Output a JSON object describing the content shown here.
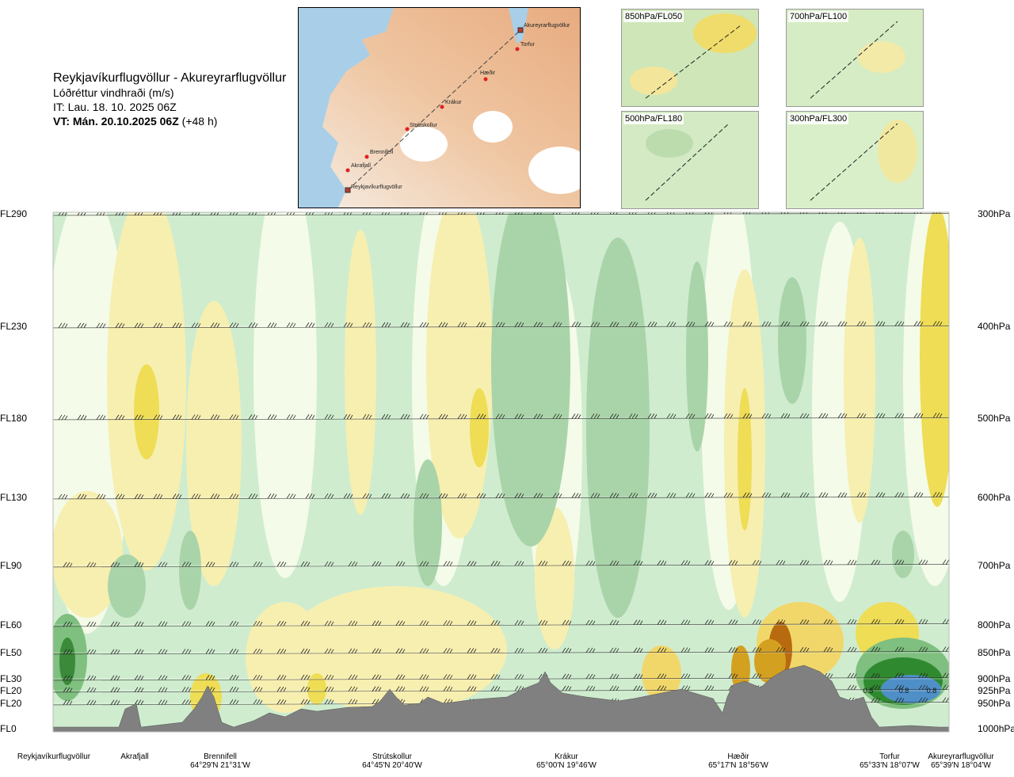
{
  "header": {
    "route": "Reykjavíkurflugvöllur - Akureyrarflugvöllur",
    "quantity": "Lóðréttur vindhraði (m/s)",
    "issue_time": "IT: Lau. 18. 10. 2025 06Z",
    "valid_time_bold": "VT: Mán. 20.10.2025 06Z",
    "valid_time_offset": "(+48 h)"
  },
  "map": {
    "places": [
      "Akureyrarflugvöllur",
      "Torfur",
      "Hæðir",
      "Krákur",
      "Strútskollur",
      "Brennifell",
      "Akrafjall",
      "Reykjavíkurflugvöllur"
    ]
  },
  "insets": [
    {
      "label": "850hPa/FL050"
    },
    {
      "label": "700hPa/FL100"
    },
    {
      "label": "500hPa/FL180"
    },
    {
      "label": "300hPa/FL300"
    }
  ],
  "levels_left": [
    "FL290",
    "FL230",
    "FL180",
    "FL130",
    "FL90",
    "FL60",
    "FL50",
    "FL30",
    "FL20",
    "FL20",
    "FL0"
  ],
  "levels_right": [
    "300hPa",
    "400hPa",
    "500hPa",
    "600hPa",
    "700hPa",
    "800hPa",
    "850hPa",
    "900hPa",
    "925hPa",
    "950hPa",
    "1000hPa"
  ],
  "sites": [
    {
      "name": "Reykjavíkurflugvöllur",
      "coord": ""
    },
    {
      "name": "Akrafjall",
      "coord": ""
    },
    {
      "name": "Brennifell",
      "coord": "64°29'N 21°31'W"
    },
    {
      "name": "Strútskollur",
      "coord": "64°45'N 20°40'W"
    },
    {
      "name": "Krákur",
      "coord": "65°00'N 19°46'W"
    },
    {
      "name": "Hæðir",
      "coord": "65°17'N 18°56'W"
    },
    {
      "name": "Torfur",
      "coord": "65°33'N 18°07'W"
    },
    {
      "name": "Akureyrarflugvöllur",
      "coord": "65°39'N 18°04'W"
    }
  ],
  "annotations": [
    "0.5",
    "0.8",
    "0.8"
  ],
  "chart_data": {
    "type": "heatmap",
    "title": "Reykjavíkurflugvöllur - Akureyrarflugvöllur",
    "subtitle": "Lóðréttur vindhraði (m/s)",
    "x_categories": [
      "Reykjavíkurflugvöllur",
      "Akrafjall",
      "Brennifell",
      "Strútskollur",
      "Krákur",
      "Hæðir",
      "Torfur",
      "Akureyrarflugvöllur"
    ],
    "y_levels_pressure_hPa": [
      300,
      400,
      500,
      600,
      700,
      800,
      850,
      900,
      925,
      950,
      1000
    ],
    "y_levels_flight": [
      "FL290",
      "FL230",
      "FL180",
      "FL130",
      "FL90",
      "FL60",
      "FL50",
      "FL30",
      "FL20",
      "FL20",
      "FL0"
    ],
    "contour_labels": [
      0.5,
      0.8,
      0.8
    ],
    "colors": {
      "strong_down": "#3a8a3a",
      "down": "#7fbf7f",
      "weak_down": "#a9d4a9",
      "slight_down": "#cfeccf",
      "near_zero": "#f4fbe8",
      "slight_up": "#f7efb0",
      "up": "#eedd55",
      "strong_up": "#d4a020",
      "very_strong_up": "#b86a10",
      "blue_core": "#4f8fc8",
      "terrain": "#808080"
    },
    "grid": false,
    "legend": "none"
  }
}
